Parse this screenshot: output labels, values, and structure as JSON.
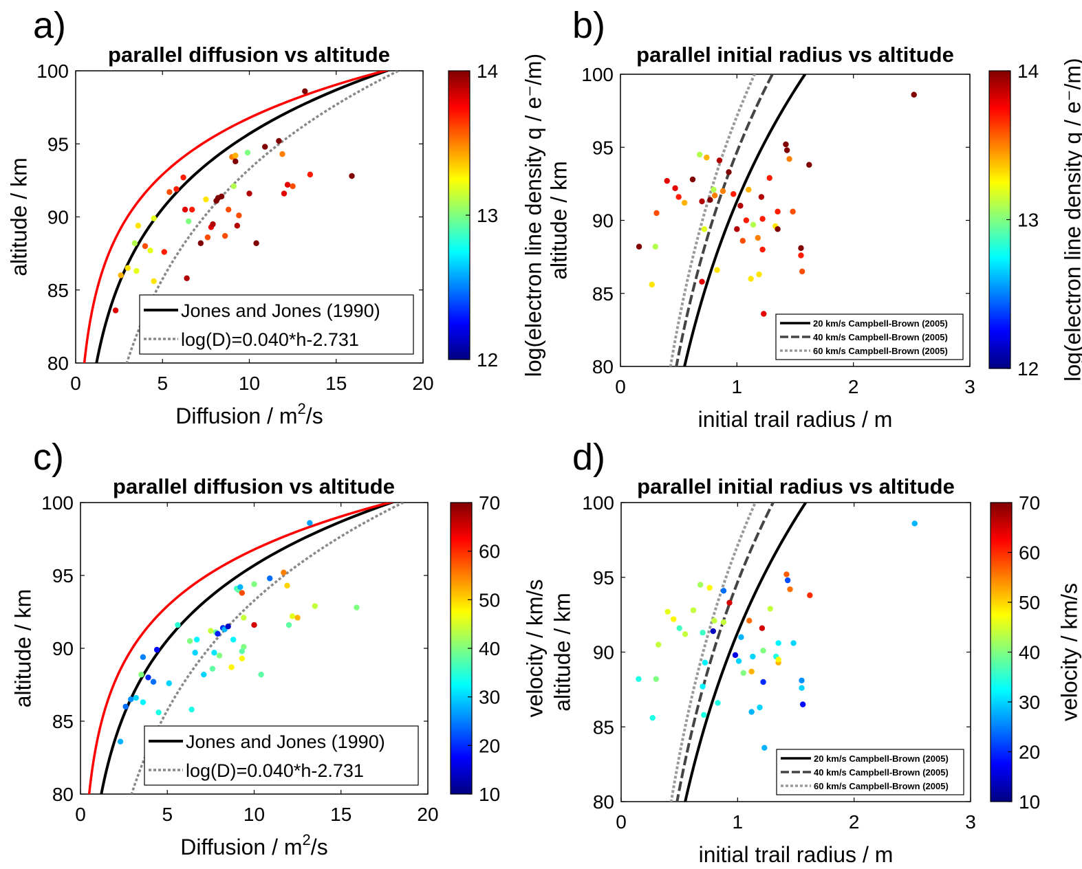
{
  "colors": {
    "jones": "#000000",
    "fit": "#888888",
    "red_curve": "#ff0000",
    "cb20": "#000000",
    "cb40": "#444444",
    "cb60": "#999999"
  },
  "colormap": "jet",
  "chart_data": [
    {
      "id": "a",
      "panel_label": "a)",
      "type": "scatter",
      "title": "parallel diffusion vs altitude",
      "xlabel": "Diffusion / m",
      "xlabel_sup": "2",
      "xlabel_tail": "/s",
      "ylabel": "altitude / km",
      "xlim": [
        0,
        20
      ],
      "ylim": [
        80,
        100
      ],
      "xticks": [
        0,
        5,
        10,
        15,
        20
      ],
      "yticks": [
        80,
        85,
        90,
        95,
        100
      ],
      "colorbar": {
        "label": "log(electron line density q / e⁻/m)",
        "ticks": [
          12,
          13,
          14
        ],
        "range": [
          12,
          14
        ]
      },
      "legend": {
        "position": "bottom-right",
        "size": "large",
        "entries": [
          "Jones and Jones (1990)",
          "log(D)=0.040*h-2.731"
        ]
      },
      "curve_kind": "diffusion",
      "points": [
        [
          2.3,
          83.6,
          13.8
        ],
        [
          2.6,
          86.0,
          13.4
        ],
        [
          3.0,
          86.5,
          13.3
        ],
        [
          3.5,
          86.3,
          13.2
        ],
        [
          3.4,
          88.2,
          13.1
        ],
        [
          3.6,
          89.4,
          13.3
        ],
        [
          4.0,
          88.0,
          13.6
        ],
        [
          4.3,
          87.7,
          13.2
        ],
        [
          4.5,
          85.6,
          13.3
        ],
        [
          4.5,
          89.9,
          13.2
        ],
        [
          5.1,
          87.6,
          13.7
        ],
        [
          5.4,
          91.7,
          13.6
        ],
        [
          5.8,
          91.9,
          13.7
        ],
        [
          6.2,
          92.7,
          13.7
        ],
        [
          6.3,
          90.5,
          13.8
        ],
        [
          6.5,
          89.7,
          13.0
        ],
        [
          6.7,
          90.5,
          13.7
        ],
        [
          6.4,
          85.8,
          13.9
        ],
        [
          7.2,
          88.2,
          14.0
        ],
        [
          7.5,
          91.2,
          13.3
        ],
        [
          7.6,
          88.6,
          13.6
        ],
        [
          7.8,
          89.3,
          13.8
        ],
        [
          7.9,
          89.5,
          13.9
        ],
        [
          8.1,
          91.1,
          14.0
        ],
        [
          8.2,
          91.3,
          14.0
        ],
        [
          8.4,
          91.4,
          14.0
        ],
        [
          8.6,
          88.7,
          13.6
        ],
        [
          8.8,
          90.5,
          13.6
        ],
        [
          9.0,
          94.1,
          13.5
        ],
        [
          9.2,
          94.2,
          13.4
        ],
        [
          9.2,
          93.8,
          14.0
        ],
        [
          9.3,
          89.4,
          13.9
        ],
        [
          9.4,
          90.1,
          13.6
        ],
        [
          9.1,
          92.1,
          13.1
        ],
        [
          9.9,
          94.4,
          13.0
        ],
        [
          10.0,
          91.6,
          13.9
        ],
        [
          10.4,
          88.2,
          14.0
        ],
        [
          10.9,
          94.8,
          14.0
        ],
        [
          11.7,
          95.2,
          14.0
        ],
        [
          11.9,
          94.3,
          13.5
        ],
        [
          12.0,
          91.6,
          13.8
        ],
        [
          12.2,
          92.2,
          13.8
        ],
        [
          12.5,
          92.1,
          13.6
        ],
        [
          13.2,
          98.6,
          14.0
        ],
        [
          13.5,
          92.9,
          13.7
        ],
        [
          15.9,
          92.8,
          14.0
        ]
      ]
    },
    {
      "id": "b",
      "panel_label": "b)",
      "type": "scatter",
      "title": "parallel initial radius vs altitude",
      "xlabel": "initial trail radius / m",
      "ylabel": "altitude / km",
      "xlim": [
        0,
        3
      ],
      "ylim": [
        80,
        100
      ],
      "xticks": [
        0,
        1,
        2,
        3
      ],
      "yticks": [
        80,
        85,
        90,
        95,
        100
      ],
      "colorbar": {
        "label": "log(electron line density q / e⁻/m)",
        "ticks": [
          12,
          13,
          14
        ],
        "range": [
          12,
          14
        ]
      },
      "legend": {
        "position": "bottom-right",
        "size": "small",
        "entries": [
          "20 km/s Campbell-Brown (2005)",
          "40 km/s Campbell-Brown (2005)",
          "60 km/s Campbell-Brown (2005)"
        ]
      },
      "curve_kind": "radius",
      "points": [
        [
          0.16,
          88.2,
          14.0
        ],
        [
          0.27,
          85.6,
          13.3
        ],
        [
          0.3,
          88.2,
          13.1
        ],
        [
          0.31,
          90.5,
          13.6
        ],
        [
          0.4,
          92.7,
          13.8
        ],
        [
          0.47,
          92.2,
          13.8
        ],
        [
          0.5,
          91.6,
          13.7
        ],
        [
          0.55,
          91.2,
          13.4
        ],
        [
          0.62,
          92.8,
          14.0
        ],
        [
          0.68,
          94.5,
          13.1
        ],
        [
          0.7,
          91.3,
          13.9
        ],
        [
          0.7,
          85.8,
          13.8
        ],
        [
          0.72,
          89.4,
          13.2
        ],
        [
          0.74,
          94.3,
          13.4
        ],
        [
          0.77,
          91.4,
          14.0
        ],
        [
          0.8,
          92.1,
          13.1
        ],
        [
          0.81,
          91.7,
          13.5
        ],
        [
          0.83,
          86.6,
          13.3
        ],
        [
          0.85,
          94.1,
          13.9
        ],
        [
          0.88,
          92.0,
          13.5
        ],
        [
          0.93,
          93.3,
          14.0
        ],
        [
          0.97,
          91.8,
          13.7
        ],
        [
          1.0,
          89.4,
          13.9
        ],
        [
          1.03,
          91.0,
          13.9
        ],
        [
          1.05,
          88.6,
          13.6
        ],
        [
          1.08,
          90.0,
          13.7
        ],
        [
          1.1,
          92.1,
          13.4
        ],
        [
          1.12,
          86.0,
          13.3
        ],
        [
          1.14,
          89.7,
          13.1
        ],
        [
          1.18,
          88.8,
          13.5
        ],
        [
          1.19,
          86.3,
          13.3
        ],
        [
          1.21,
          91.6,
          13.9
        ],
        [
          1.22,
          90.1,
          13.7
        ],
        [
          1.22,
          88.0,
          13.7
        ],
        [
          1.23,
          83.6,
          13.8
        ],
        [
          1.28,
          92.9,
          13.7
        ],
        [
          1.33,
          89.6,
          13.3
        ],
        [
          1.35,
          90.6,
          13.7
        ],
        [
          1.35,
          89.4,
          14.0
        ],
        [
          1.42,
          95.2,
          14.0
        ],
        [
          1.43,
          94.8,
          14.0
        ],
        [
          1.45,
          94.2,
          13.5
        ],
        [
          1.48,
          90.6,
          13.6
        ],
        [
          1.55,
          88.1,
          14.0
        ],
        [
          1.55,
          87.6,
          13.7
        ],
        [
          1.56,
          86.5,
          13.6
        ],
        [
          1.62,
          93.8,
          14.0
        ],
        [
          2.52,
          98.6,
          14.0
        ]
      ]
    },
    {
      "id": "c",
      "panel_label": "c)",
      "type": "scatter",
      "title": "parallel diffusion vs altitude",
      "xlabel": "Diffusion / m",
      "xlabel_sup": "2",
      "xlabel_tail": "/s",
      "ylabel": "altitude / km",
      "xlim": [
        0,
        20
      ],
      "ylim": [
        80,
        100
      ],
      "xticks": [
        0,
        5,
        10,
        15,
        20
      ],
      "yticks": [
        80,
        85,
        90,
        95,
        100
      ],
      "colorbar": {
        "label": "velocity / km/s",
        "ticks": [
          10,
          20,
          30,
          40,
          50,
          60,
          70
        ],
        "range": [
          10,
          70
        ]
      },
      "legend": {
        "position": "bottom-right",
        "size": "large",
        "entries": [
          "Jones and Jones (1990)",
          "log(D)=0.040*h-2.731"
        ]
      },
      "curve_kind": "diffusion",
      "points": [
        [
          2.3,
          83.6,
          28
        ],
        [
          2.6,
          86.0,
          24
        ],
        [
          2.9,
          86.5,
          26
        ],
        [
          3.2,
          86.6,
          30
        ],
        [
          3.5,
          88.2,
          40
        ],
        [
          3.6,
          89.4,
          25
        ],
        [
          3.6,
          86.3,
          32
        ],
        [
          3.9,
          88.0,
          20
        ],
        [
          4.2,
          87.7,
          24
        ],
        [
          4.4,
          89.9,
          18
        ],
        [
          4.5,
          85.6,
          34
        ],
        [
          5.1,
          87.6,
          30
        ],
        [
          5.6,
          91.6,
          35
        ],
        [
          6.3,
          90.5,
          40
        ],
        [
          6.4,
          85.8,
          34
        ],
        [
          6.6,
          89.7,
          30
        ],
        [
          6.7,
          90.6,
          32
        ],
        [
          7.1,
          88.2,
          30
        ],
        [
          7.5,
          91.2,
          44
        ],
        [
          7.6,
          88.6,
          38
        ],
        [
          7.7,
          89.7,
          31
        ],
        [
          7.8,
          91.1,
          38
        ],
        [
          7.9,
          91.0,
          19
        ],
        [
          8.0,
          89.5,
          40
        ],
        [
          8.2,
          91.4,
          20
        ],
        [
          8.3,
          91.3,
          28
        ],
        [
          8.5,
          91.5,
          14
        ],
        [
          8.7,
          88.7,
          48
        ],
        [
          8.8,
          90.6,
          32
        ],
        [
          9.0,
          94.1,
          36
        ],
        [
          9.1,
          94.0,
          38
        ],
        [
          9.2,
          94.2,
          28
        ],
        [
          9.3,
          93.8,
          58
        ],
        [
          9.3,
          89.3,
          48
        ],
        [
          9.4,
          90.1,
          40
        ],
        [
          9.3,
          89.8,
          38
        ],
        [
          9.4,
          92.1,
          44
        ],
        [
          10.0,
          94.4,
          40
        ],
        [
          10.0,
          91.6,
          65
        ],
        [
          10.4,
          88.2,
          38
        ],
        [
          10.9,
          94.8,
          24
        ],
        [
          11.7,
          95.2,
          55
        ],
        [
          11.9,
          94.3,
          50
        ],
        [
          12.0,
          91.6,
          38
        ],
        [
          12.2,
          92.2,
          46
        ],
        [
          12.5,
          92.1,
          52
        ],
        [
          13.2,
          98.6,
          27
        ],
        [
          13.5,
          92.9,
          44
        ],
        [
          15.9,
          92.8,
          40
        ]
      ]
    },
    {
      "id": "d",
      "panel_label": "d)",
      "type": "scatter",
      "title": "parallel initial radius vs altitude",
      "xlabel": "initial trail radius / m",
      "ylabel": "altitude / km",
      "xlim": [
        0,
        3
      ],
      "ylim": [
        80,
        100
      ],
      "xticks": [
        0,
        1,
        2,
        3
      ],
      "yticks": [
        80,
        85,
        90,
        95,
        100
      ],
      "colorbar": {
        "label": "velocity / km/s",
        "ticks": [
          10,
          20,
          30,
          40,
          50,
          60,
          70
        ],
        "range": [
          10,
          70
        ]
      },
      "legend": {
        "position": "bottom-right",
        "size": "small",
        "entries": [
          "20 km/s Campbell-Brown (2005)",
          "40 km/s Campbell-Brown (2005)",
          "60 km/s Campbell-Brown (2005)"
        ]
      },
      "curve_kind": "radius",
      "points": [
        [
          0.15,
          88.2,
          34
        ],
        [
          0.27,
          85.6,
          34
        ],
        [
          0.3,
          88.2,
          40
        ],
        [
          0.32,
          90.5,
          44
        ],
        [
          0.4,
          92.7,
          46
        ],
        [
          0.45,
          92.2,
          48
        ],
        [
          0.5,
          91.6,
          36
        ],
        [
          0.55,
          91.2,
          44
        ],
        [
          0.62,
          92.8,
          44
        ],
        [
          0.68,
          94.5,
          42
        ],
        [
          0.7,
          87.7,
          32
        ],
        [
          0.7,
          91.3,
          36
        ],
        [
          0.71,
          85.8,
          34
        ],
        [
          0.72,
          89.3,
          32
        ],
        [
          0.76,
          94.3,
          48
        ],
        [
          0.79,
          91.4,
          14
        ],
        [
          0.8,
          92.1,
          44
        ],
        [
          0.83,
          86.6,
          34
        ],
        [
          0.88,
          94.1,
          24
        ],
        [
          0.88,
          92.0,
          44
        ],
        [
          0.93,
          93.3,
          65
        ],
        [
          0.98,
          89.8,
          16
        ],
        [
          1.01,
          89.4,
          30
        ],
        [
          1.03,
          91.0,
          28
        ],
        [
          1.05,
          88.6,
          40
        ],
        [
          1.1,
          92.1,
          56
        ],
        [
          1.12,
          86.0,
          28
        ],
        [
          1.13,
          89.7,
          30
        ],
        [
          1.12,
          88.7,
          52
        ],
        [
          1.19,
          86.3,
          30
        ],
        [
          1.21,
          91.6,
          65
        ],
        [
          1.22,
          90.1,
          40
        ],
        [
          1.22,
          88.0,
          20
        ],
        [
          1.23,
          83.6,
          28
        ],
        [
          1.28,
          92.9,
          44
        ],
        [
          1.33,
          89.7,
          34
        ],
        [
          1.35,
          90.6,
          32
        ],
        [
          1.35,
          89.3,
          52
        ],
        [
          1.35,
          89.5,
          48
        ],
        [
          1.42,
          95.2,
          57
        ],
        [
          1.43,
          94.8,
          22
        ],
        [
          1.45,
          94.2,
          56
        ],
        [
          1.48,
          90.6,
          30
        ],
        [
          1.55,
          88.1,
          26
        ],
        [
          1.55,
          87.6,
          30
        ],
        [
          1.56,
          86.5,
          18
        ],
        [
          1.62,
          93.8,
          60
        ],
        [
          2.52,
          98.6,
          28
        ]
      ]
    }
  ]
}
